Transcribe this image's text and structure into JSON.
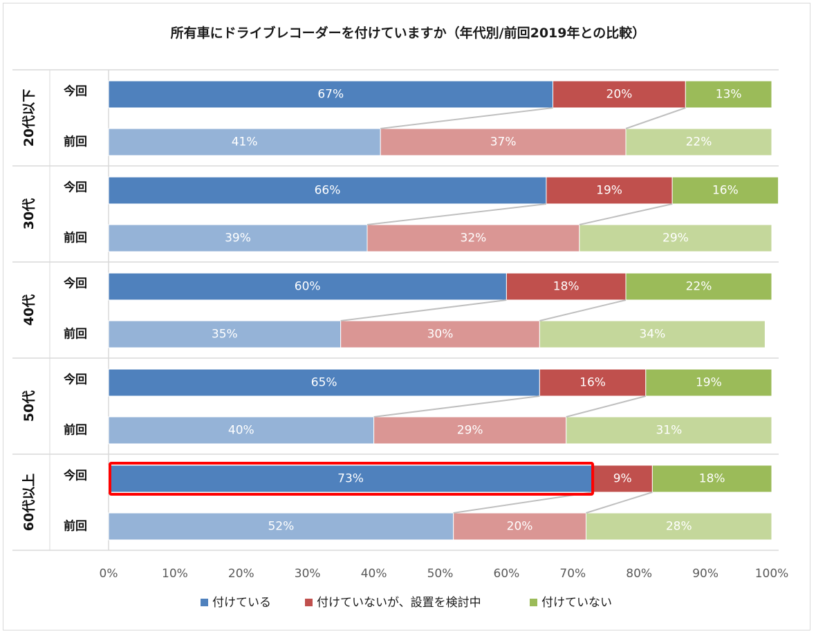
{
  "chart_data": {
    "type": "bar",
    "orientation": "horizontal-stacked-100",
    "title": "所有車にドライブレコーダーを付けていますか（年代別/前回2019年との比較）",
    "xlim": [
      0,
      100
    ],
    "x_ticks": [
      "0%",
      "10%",
      "20%",
      "30%",
      "40%",
      "50%",
      "60%",
      "70%",
      "80%",
      "90%",
      "100%"
    ],
    "row_labels": {
      "current": "今回",
      "previous": "前回"
    },
    "categories_legend": [
      "付けている",
      "付けていないが、設置を検討中",
      "付けていない"
    ],
    "colors": {
      "current": [
        "#4f81bd",
        "#c0504d",
        "#9bbb59"
      ],
      "previous": [
        "#95b3d7",
        "#da9694",
        "#c4d79b"
      ],
      "highlight": "#ff0000",
      "connector": "#bfbfbf"
    },
    "groups": [
      {
        "label": "20代以下",
        "current": [
          67,
          20,
          13
        ],
        "previous": [
          41,
          37,
          22
        ]
      },
      {
        "label": "30代",
        "current": [
          66,
          19,
          16
        ],
        "previous": [
          39,
          32,
          29
        ]
      },
      {
        "label": "40代",
        "current": [
          60,
          18,
          22
        ],
        "previous": [
          35,
          30,
          34
        ]
      },
      {
        "label": "50代",
        "current": [
          65,
          16,
          19
        ],
        "previous": [
          40,
          29,
          31
        ]
      },
      {
        "label": "60代以上",
        "current": [
          73,
          9,
          18
        ],
        "previous": [
          52,
          20,
          28
        ],
        "highlight_series": 0
      }
    ]
  }
}
